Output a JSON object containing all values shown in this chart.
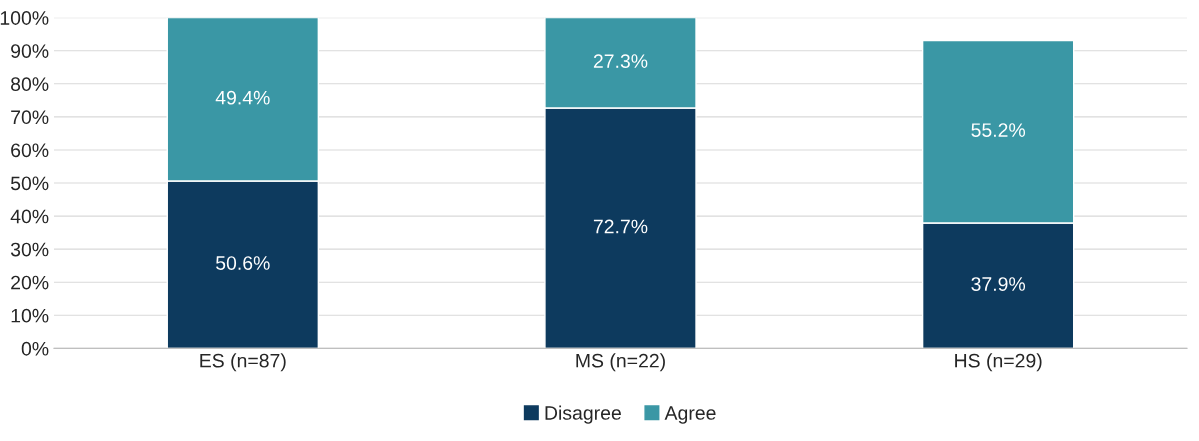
{
  "chart_data": {
    "type": "bar",
    "stacked": true,
    "categories": [
      "ES (n=87)",
      "MS (n=22)",
      "HS (n=29)"
    ],
    "series": [
      {
        "name": "Disagree",
        "color": "#0d3a5e",
        "values": [
          50.6,
          72.7,
          37.9
        ],
        "value_labels": [
          "50.6%",
          "72.7%",
          "37.9%"
        ]
      },
      {
        "name": "Agree",
        "color": "#3a97a5",
        "values": [
          49.4,
          27.3,
          55.2
        ],
        "value_labels": [
          "49.4%",
          "27.3%",
          "55.2%"
        ]
      }
    ],
    "ylim": [
      0,
      100
    ],
    "yticks": [
      {
        "value": 0,
        "label": "0%"
      },
      {
        "value": 10,
        "label": "10%"
      },
      {
        "value": 20,
        "label": "20%"
      },
      {
        "value": 30,
        "label": "30%"
      },
      {
        "value": 40,
        "label": "40%"
      },
      {
        "value": 50,
        "label": "50%"
      },
      {
        "value": 60,
        "label": "60%"
      },
      {
        "value": 70,
        "label": "70%"
      },
      {
        "value": 80,
        "label": "80%"
      },
      {
        "value": 90,
        "label": "90%"
      },
      {
        "value": 100,
        "label": "100%"
      }
    ],
    "grid": "y",
    "legend": "bottom"
  }
}
